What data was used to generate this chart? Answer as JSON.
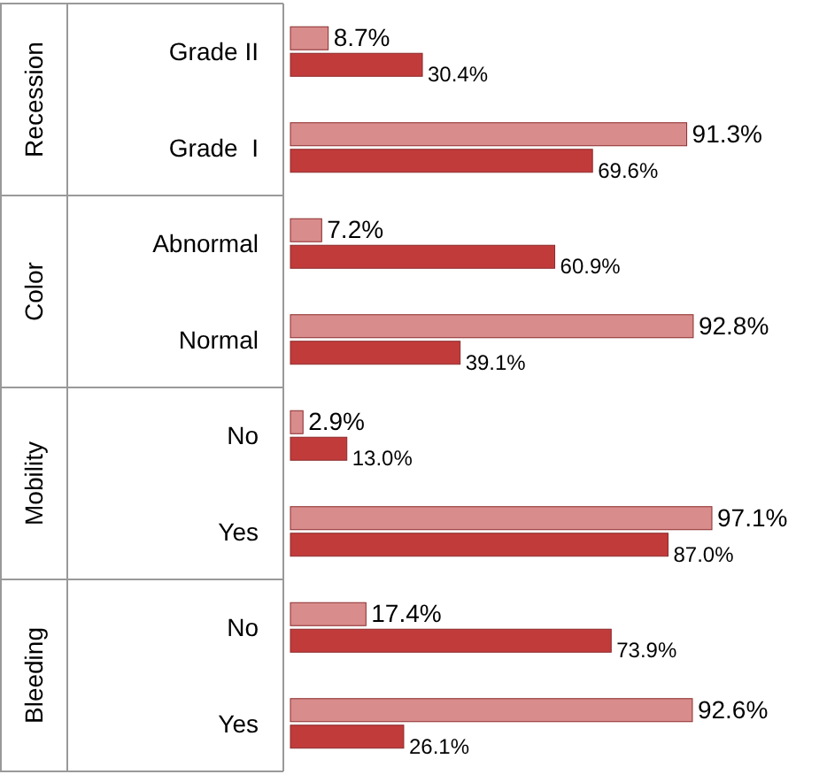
{
  "chart_data": {
    "type": "bar",
    "orientation": "horizontal",
    "categories": [
      "Grade II",
      "Grade  I",
      "Abnormal",
      "Normal",
      "No",
      "Yes",
      "No",
      "Yes"
    ],
    "series": [
      {
        "color": "#d98c8c",
        "values": [
          8.7,
          91.3,
          7.2,
          92.8,
          2.9,
          97.1,
          17.4,
          92.6
        ],
        "value_labels": [
          "8.7%",
          "91.3%",
          "7.2%",
          "92.8%",
          "2.9%",
          "97.1%",
          "17.4%",
          "92.6%"
        ]
      },
      {
        "color": "#c23b3b",
        "values": [
          30.4,
          69.6,
          60.9,
          39.1,
          13.0,
          87.0,
          73.9,
          26.1
        ],
        "value_labels": [
          "30.4%",
          "69.6%",
          "60.9%",
          "39.1%",
          "13.0%",
          "87.0%",
          "73.9%",
          "26.1%"
        ]
      }
    ],
    "annotations": [
      "Recession",
      "Color",
      "Mobility",
      "Bleeding"
    ],
    "data_labels": false
  }
}
